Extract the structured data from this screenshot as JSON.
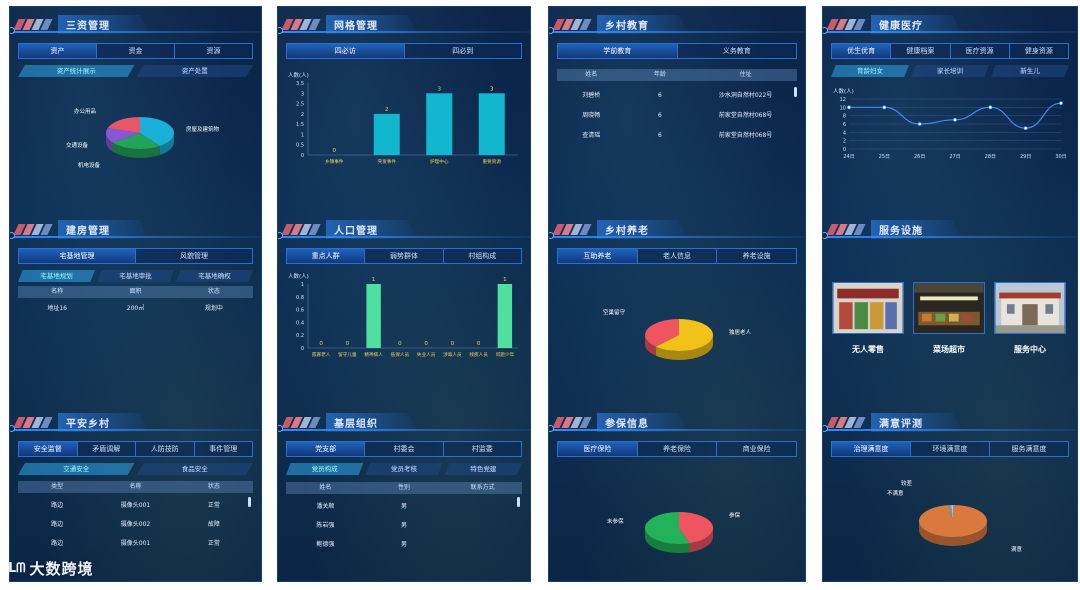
{
  "columns": [
    {
      "panels": [
        {
          "title": "三资管理",
          "tabs": [
            "资产",
            "资金",
            "资源"
          ],
          "subtabs": [
            "资产统计展示",
            "资产处置"
          ],
          "pie_labels": [
            "办公用品",
            "交通设备",
            "机电设备",
            "房屋及建筑物"
          ]
        },
        {
          "title": "建房管理",
          "tabs": [
            "宅基地管理",
            "风貌管理"
          ],
          "subtabs": [
            "宅基地规划",
            "宅基地审批",
            "宅基地确权"
          ],
          "headers": [
            "名称",
            "面积",
            "状态"
          ],
          "rows": [
            [
              "地址16",
              "200㎡",
              "规划中"
            ]
          ]
        },
        {
          "title": "平安乡村",
          "tabs": [
            "安全监督",
            "矛盾调解",
            "人防技防",
            "事件管理"
          ],
          "subtabs": [
            "交通安全",
            "食品安全"
          ],
          "headers": [
            "类型",
            "名称",
            "状态"
          ],
          "rows": [
            [
              "路边",
              "摄像头001",
              "正常"
            ],
            [
              "路边",
              "摄像头002",
              "故障"
            ],
            [
              "路边",
              "摄像头001",
              "正常"
            ]
          ]
        }
      ]
    },
    {
      "panels": [
        {
          "title": "网格管理",
          "tabs": [
            "四必访",
            "四必到"
          ]
        },
        {
          "title": "人口管理",
          "tabs": [
            "重点人群",
            "弱势群体",
            "村组构成"
          ]
        },
        {
          "title": "基层组织",
          "tabs": [
            "党支部",
            "村委会",
            "村监委"
          ],
          "subtabs": [
            "党员构成",
            "党员考核",
            "特色党建"
          ],
          "headers": [
            "姓名",
            "性别",
            "联系方式"
          ],
          "rows": [
            [
              "潘关顺",
              "男",
              ""
            ],
            [
              "陈岩强",
              "男",
              ""
            ],
            [
              "鲍德强",
              "男",
              ""
            ]
          ]
        }
      ]
    },
    {
      "panels": [
        {
          "title": "乡村教育",
          "tabs": [
            "学前教育",
            "义务教育"
          ],
          "headers": [
            "姓名",
            "年龄",
            "住址"
          ],
          "rows": [
            [
              "刘碧桥",
              "6",
              "沙水洞自然村022号"
            ],
            [
              "周晓畅",
              "6",
              "前家堂自然村068号"
            ],
            [
              "查清瑶",
              "6",
              "前家堂自然村068号"
            ]
          ]
        },
        {
          "title": "乡村养老",
          "tabs": [
            "互助养老",
            "老人信息",
            "养老设施"
          ],
          "pie_labels": [
            "空巢留守",
            "独居老人"
          ]
        },
        {
          "title": "参保信息",
          "tabs": [
            "医疗保险",
            "养老保险",
            "商业保险"
          ],
          "pie_labels": [
            "未参保",
            "参保"
          ]
        }
      ]
    },
    {
      "panels": [
        {
          "title": "健康医疗",
          "tabs": [
            "优生优育",
            "健康档案",
            "医疗资源",
            "健身资源"
          ],
          "subtabs": [
            "育龄妇女",
            "家长培训",
            "新生儿"
          ]
        },
        {
          "title": "服务设施",
          "facilities": [
            "无人零售",
            "菜场超市",
            "服务中心"
          ]
        },
        {
          "title": "满意评测",
          "tabs": [
            "治理满意度",
            "环境满意度",
            "服务满意度"
          ],
          "pie_labels": [
            "较差",
            "不满意",
            "满意"
          ]
        }
      ]
    }
  ],
  "chart_data": [
    {
      "type": "bar",
      "panel": "网格管理",
      "ylabel": "人数(人)",
      "categories": [
        "乡镇事件",
        "突发事件",
        "护理中心",
        "重要资源"
      ],
      "values": [
        0,
        2,
        3,
        3
      ],
      "ylim": [
        0,
        3.5
      ],
      "yticks": [
        "0",
        "0.5",
        "1",
        "1.5",
        "2",
        "2.5",
        "3",
        "3.5"
      ],
      "color": "#12b6cf"
    },
    {
      "type": "bar",
      "panel": "人口管理",
      "ylabel": "人数(人)",
      "categories": [
        "孤寡老人",
        "留守儿童",
        "精神病人",
        "低保人员",
        "失业人员",
        "涉毒人员",
        "残疾人员",
        "问题少年"
      ],
      "values": [
        0,
        0,
        1,
        0,
        0,
        0,
        0,
        1
      ],
      "ylim": [
        0,
        1
      ],
      "yticks": [
        "0",
        "0.2",
        "0.4",
        "0.6",
        "0.8",
        "1"
      ],
      "color": "#4fe0a0"
    },
    {
      "type": "line",
      "panel": "健康医疗",
      "ylabel": "人数(人)",
      "x": [
        "24日",
        "25日",
        "26日",
        "27日",
        "28日",
        "29日",
        "30日"
      ],
      "values": [
        10,
        10,
        6,
        7,
        10,
        5,
        11
      ],
      "ylim": [
        0,
        12
      ],
      "yticks": [
        "0",
        "2",
        "4",
        "6",
        "8",
        "10",
        "12"
      ],
      "color": "#3b8cff"
    },
    {
      "type": "pie",
      "panel": "三资管理",
      "labels": [
        "房屋及建筑物",
        "机电设备",
        "交通设备",
        "办公用品"
      ],
      "values": [
        40,
        25,
        15,
        20
      ],
      "colors": [
        "#1ab0d8",
        "#23a35a",
        "#8a55d6",
        "#e8566a"
      ]
    },
    {
      "type": "pie",
      "panel": "乡村养老",
      "labels": [
        "独居老人",
        "空巢留守"
      ],
      "values": [
        62,
        38
      ],
      "colors": [
        "#f2c218",
        "#ef5560"
      ]
    },
    {
      "type": "pie",
      "panel": "参保信息",
      "labels": [
        "参保",
        "未参保"
      ],
      "values": [
        45,
        55
      ],
      "colors": [
        "#ef5560",
        "#23b25a"
      ]
    },
    {
      "type": "pie",
      "panel": "满意评测",
      "labels": [
        "满意",
        "不满意",
        "较差"
      ],
      "values": [
        98,
        1.2,
        0.8
      ],
      "colors": [
        "#d9793e",
        "#3ab0e0",
        "#b7c6d8"
      ]
    }
  ],
  "watermark": {
    "logo": "ᒪᗰ",
    "text": "大数跨境"
  }
}
